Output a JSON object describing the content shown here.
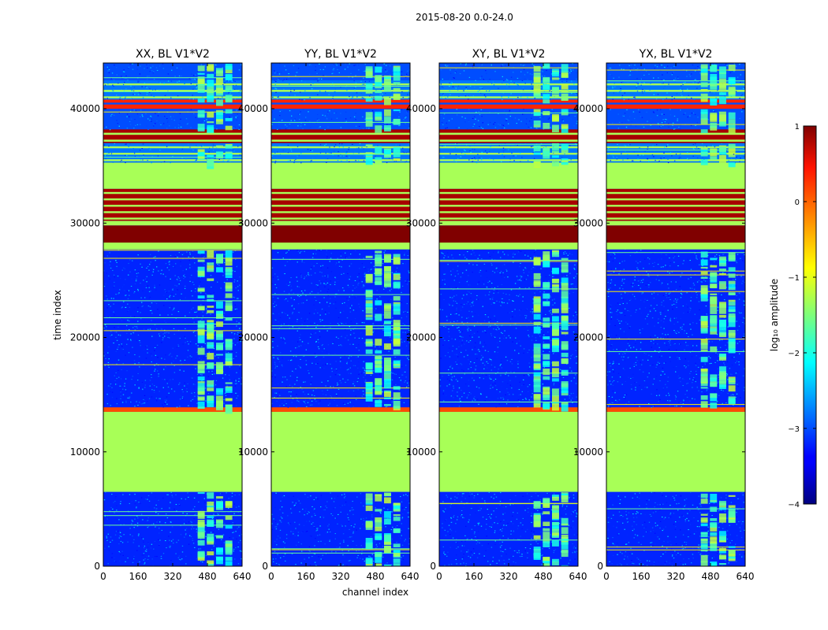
{
  "chart_data": {
    "type": "heatmap",
    "suptitle": "2015-08-20 0.0-24.0",
    "xlabel": "channel index",
    "ylabel": "time index",
    "xlim": [
      0,
      640
    ],
    "ylim": [
      0,
      44000
    ],
    "x_ticks": [
      "0",
      "160",
      "320",
      "480",
      "640"
    ],
    "x_tick_values": [
      0,
      160,
      320,
      480,
      640
    ],
    "y_ticks": [
      "0",
      "10000",
      "20000",
      "30000",
      "40000"
    ],
    "y_tick_values": [
      0,
      10000,
      20000,
      30000,
      40000
    ],
    "panels": [
      {
        "title": "XX, BL V1*V2",
        "id": "xx"
      },
      {
        "title": "YY, BL V1*V2",
        "id": "yy"
      },
      {
        "title": "XY, BL V1*V2",
        "id": "xy"
      },
      {
        "title": "YX, BL V1*V2",
        "id": "yx"
      }
    ],
    "colorbar": {
      "label": "log₁₀ amplitude",
      "range": [
        -4,
        1
      ],
      "ticks": [
        "1",
        "0",
        "−1",
        "−2",
        "−3",
        "−4"
      ],
      "tick_values": [
        1,
        0,
        -1,
        -2,
        -3,
        -4
      ],
      "colormap": "jet"
    },
    "band_approx": [
      {
        "time_start": 0,
        "time_end": 6500,
        "level": "noise",
        "log10_amplitude": -3.2
      },
      {
        "time_start": 6500,
        "time_end": 13500,
        "level": "flat",
        "log10_amplitude": -1.3
      },
      {
        "time_start": 13500,
        "time_end": 13900,
        "level": "high",
        "log10_amplitude": 0.0
      },
      {
        "time_start": 13900,
        "time_end": 27700,
        "level": "noise",
        "log10_amplitude": -3.2
      },
      {
        "time_start": 27700,
        "time_end": 28300,
        "level": "flat",
        "log10_amplitude": -1.3
      },
      {
        "time_start": 28300,
        "time_end": 29800,
        "level": "saturated",
        "log10_amplitude": 1.0
      },
      {
        "time_start": 29800,
        "time_end": 30200,
        "level": "flat",
        "log10_amplitude": -1.3
      },
      {
        "time_start": 30200,
        "time_end": 33000,
        "level": "striped-saturated",
        "log10_amplitude": 0.8
      },
      {
        "time_start": 33000,
        "time_end": 35300,
        "level": "flat",
        "log10_amplitude": -1.3
      },
      {
        "time_start": 35300,
        "time_end": 37000,
        "level": "striped-noise",
        "log10_amplitude": -2.8
      },
      {
        "time_start": 37000,
        "time_end": 38200,
        "level": "striped-saturated",
        "log10_amplitude": 0.8
      },
      {
        "time_start": 38200,
        "time_end": 40000,
        "level": "noise",
        "log10_amplitude": -3.0
      },
      {
        "time_start": 40000,
        "time_end": 40800,
        "level": "striped-high",
        "log10_amplitude": 0.2
      },
      {
        "time_start": 40800,
        "time_end": 42500,
        "level": "striped-noise",
        "log10_amplitude": -2.8
      },
      {
        "time_start": 42500,
        "time_end": 44000,
        "level": "noise",
        "log10_amplitude": -3.0
      }
    ],
    "active_channel_range": [
      430,
      600
    ]
  }
}
